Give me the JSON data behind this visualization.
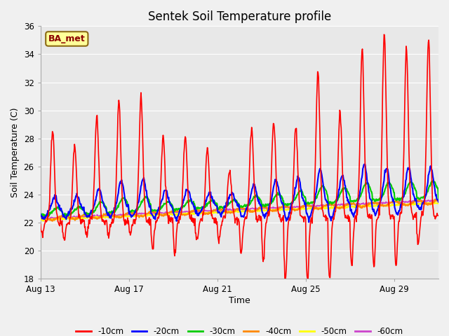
{
  "title": "Sentek Soil Temperature profile",
  "xlabel": "Time",
  "ylabel": "Soil Temperature (C)",
  "ylim": [
    18,
    36
  ],
  "yticks": [
    18,
    20,
    22,
    24,
    26,
    28,
    30,
    32,
    34,
    36
  ],
  "plot_bg_color": "#e8e8e8",
  "annotation_text": "BA_met",
  "annotation_bg": "#ffff99",
  "annotation_border": "#8B6914",
  "annotation_text_color": "#8B0000",
  "legend_entries": [
    "-10cm",
    "-20cm",
    "-30cm",
    "-40cm",
    "-50cm",
    "-60cm"
  ],
  "line_colors": [
    "#ff0000",
    "#0000ff",
    "#00cc00",
    "#ff8800",
    "#ffff00",
    "#cc44cc"
  ],
  "x_tick_days": [
    0,
    4,
    8,
    12,
    16
  ],
  "x_tick_labels": [
    "Aug 13",
    "Aug 17",
    "Aug 21",
    "Aug 25",
    "Aug 29"
  ],
  "n_days": 18,
  "n_per_day": 48
}
